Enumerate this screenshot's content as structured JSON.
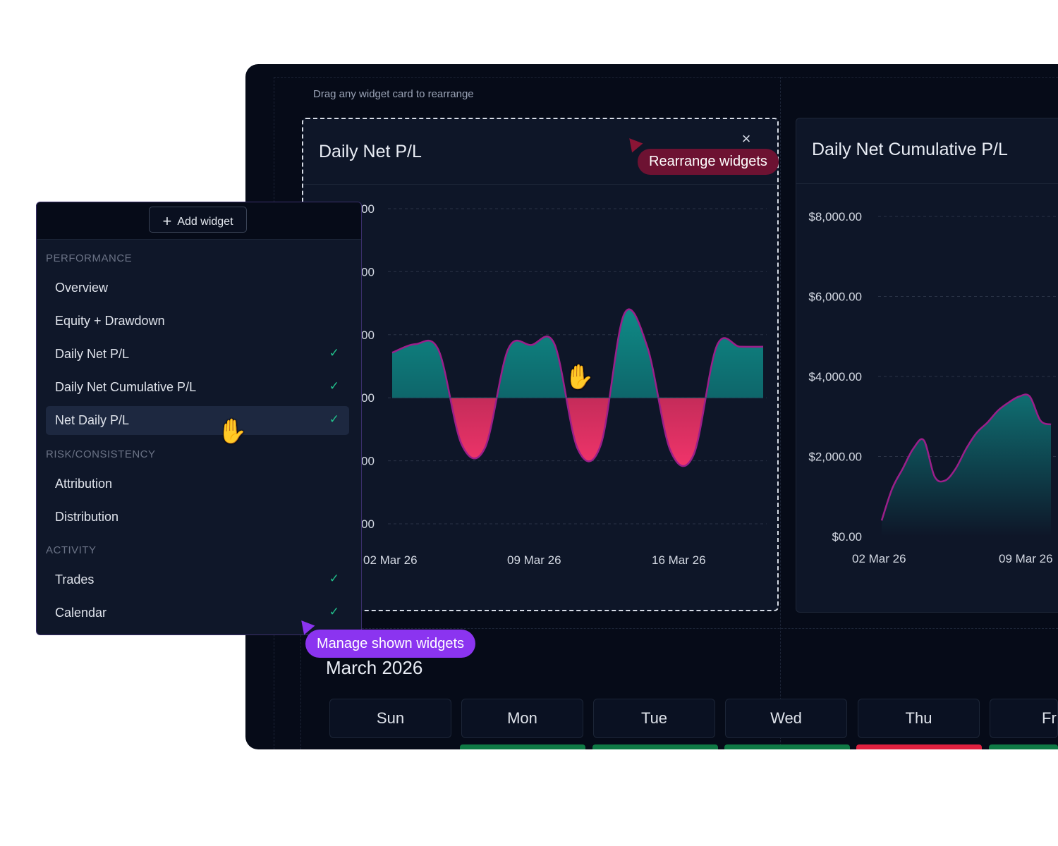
{
  "window": {
    "hint": "Drag any widget card to rearrange"
  },
  "widgets": {
    "daily": {
      "title": "Daily Net P/L",
      "close_icon": "close-icon"
    },
    "cumulative": {
      "title": "Daily Net Cumulative P/L"
    }
  },
  "tooltips": {
    "rearrange": "Rearrange widgets",
    "manage": "Manage shown widgets"
  },
  "panel": {
    "add_widget_label": "Add widget",
    "sections": [
      {
        "label": "PERFORMANCE",
        "items": [
          {
            "label": "Overview",
            "checked": false
          },
          {
            "label": "Equity + Drawdown",
            "checked": false
          },
          {
            "label": "Daily Net P/L",
            "checked": true
          },
          {
            "label": "Daily Net Cumulative P/L",
            "checked": true
          },
          {
            "label": "Net Daily P/L",
            "checked": true,
            "active": true
          }
        ]
      },
      {
        "label": "RISK/CONSISTENCY",
        "items": [
          {
            "label": "Attribution",
            "checked": false
          },
          {
            "label": "Distribution",
            "checked": false
          }
        ]
      },
      {
        "label": "ACTIVITY",
        "items": [
          {
            "label": "Trades",
            "checked": true
          },
          {
            "label": "Calendar",
            "checked": true
          }
        ]
      }
    ],
    "check_glyph": "✓"
  },
  "calendar": {
    "title": "March 2026",
    "days": [
      "Sun",
      "Mon",
      "Tue",
      "Wed",
      "Thu",
      "Fri"
    ]
  },
  "colors": {
    "positive": "#0f8b86",
    "negative": "#e0305a",
    "line": "#9b1f8a",
    "accent_purple": "#8b34f0",
    "accent_red": "#6d1232",
    "calendar_green": "#0f7a45",
    "calendar_red": "#e0203f"
  },
  "chart_data": [
    {
      "type": "area",
      "title": "Daily Net P/L",
      "x_tick_labels": [
        "02 Mar 26",
        "09 Mar 26",
        "16 Mar 26"
      ],
      "y_tick_labels_partial": [
        "00",
        "00",
        "00",
        "00",
        "00",
        "00"
      ],
      "note": "y tick labels are clipped by the overlapping panel; only trailing digits are visible",
      "grid": true,
      "series": [
        {
          "values": [
            0.53,
            0.63,
            0.56,
            -0.55,
            -0.59,
            0.57,
            0.62,
            0.63,
            -0.6,
            -0.55,
            0.98,
            0.6,
            -0.62,
            -0.67,
            0.61,
            0.6,
            0.6
          ]
        }
      ],
      "y_relative_range": [
        -1,
        1
      ]
    },
    {
      "type": "area",
      "title": "Daily Net Cumulative P/L",
      "x_tick_labels": [
        "02 Mar 26",
        "09 Mar 26"
      ],
      "y_tick_labels": [
        "$8,000.00",
        "$6,000.00",
        "$4,000.00",
        "$2,000.00",
        "$0.00"
      ],
      "ylim": [
        0,
        8000
      ],
      "grid": true,
      "series": [
        {
          "values": [
            400,
            1200,
            1700,
            2200,
            2400,
            1500,
            1400,
            1700,
            2200,
            2600,
            2850,
            3150,
            3350,
            3500,
            3500,
            2900,
            2800
          ]
        }
      ]
    }
  ]
}
